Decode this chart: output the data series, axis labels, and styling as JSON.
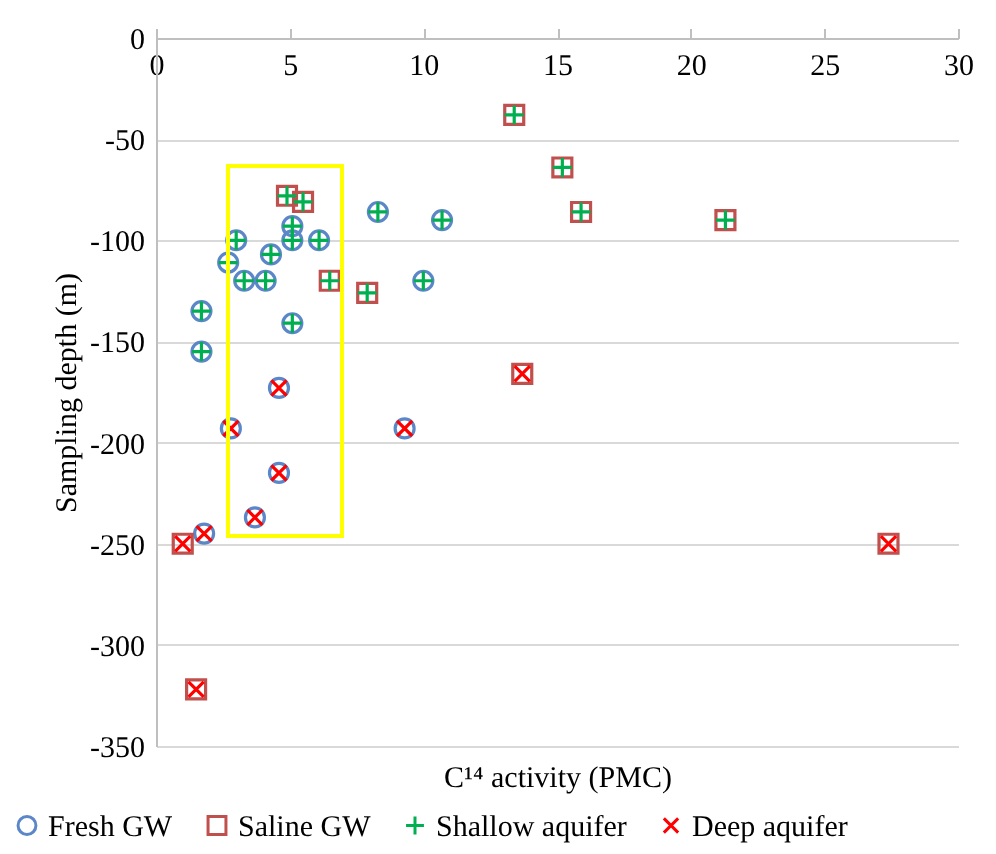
{
  "chart_data": {
    "type": "scatter",
    "xlabel": "C¹⁴ activity (PMC)",
    "ylabel": "Sampling depth (m)",
    "xlim": [
      0,
      30
    ],
    "ylim": [
      -350,
      0
    ],
    "xticks": [
      0,
      5,
      10,
      15,
      20,
      25,
      30
    ],
    "yticks": [
      0,
      -50,
      -100,
      -150,
      -200,
      -250,
      -300,
      -350
    ],
    "grid": "y",
    "legend": "bottom",
    "series": [
      {
        "name": "Fresh GW",
        "color": "#5b87c8",
        "marker": "circle",
        "x": [
          5.1,
          3.0,
          5.1,
          6.1,
          2.7,
          4.3,
          3.3,
          4.1,
          8.3,
          10.7,
          10.0,
          1.7,
          1.7,
          5.1,
          4.6,
          2.8,
          9.3,
          4.6,
          3.7,
          1.8
        ],
        "values": [
          -93,
          -100,
          -100,
          -100,
          -111,
          -107,
          -120,
          -120,
          -86,
          -90,
          -120,
          -135,
          -155,
          -141,
          -173,
          -193,
          -193,
          -215,
          -237,
          -245
        ]
      },
      {
        "name": "Saline GW",
        "color": "#c0504d",
        "marker": "square",
        "x": [
          4.9,
          5.5,
          6.5,
          7.9,
          13.4,
          15.2,
          15.9,
          21.3,
          13.7,
          1.0,
          27.4,
          1.5
        ],
        "values": [
          -78,
          -81,
          -120,
          -126,
          -38,
          -64,
          -86,
          -90,
          -166,
          -250,
          -250,
          -322
        ]
      },
      {
        "name": "Shallow aquifer",
        "color": "#00b050",
        "marker": "plus",
        "x": [
          5.1,
          3.0,
          5.1,
          6.1,
          2.7,
          4.3,
          3.3,
          4.1,
          8.3,
          10.7,
          10.0,
          1.7,
          1.7,
          5.1,
          4.9,
          5.5,
          6.5,
          7.9,
          13.4,
          15.2,
          15.9,
          21.3
        ],
        "values": [
          -93,
          -100,
          -100,
          -100,
          -111,
          -107,
          -120,
          -120,
          -86,
          -90,
          -120,
          -135,
          -155,
          -141,
          -78,
          -81,
          -120,
          -126,
          -38,
          -64,
          -86,
          -90
        ]
      },
      {
        "name": "Deep aquifer",
        "color": "#ff0000",
        "marker": "cross",
        "x": [
          4.6,
          2.8,
          9.3,
          4.6,
          3.7,
          1.8,
          13.7,
          1.0,
          27.4,
          1.5
        ],
        "values": [
          -173,
          -193,
          -193,
          -215,
          -237,
          -245,
          -166,
          -250,
          -250,
          -322
        ]
      }
    ]
  }
}
